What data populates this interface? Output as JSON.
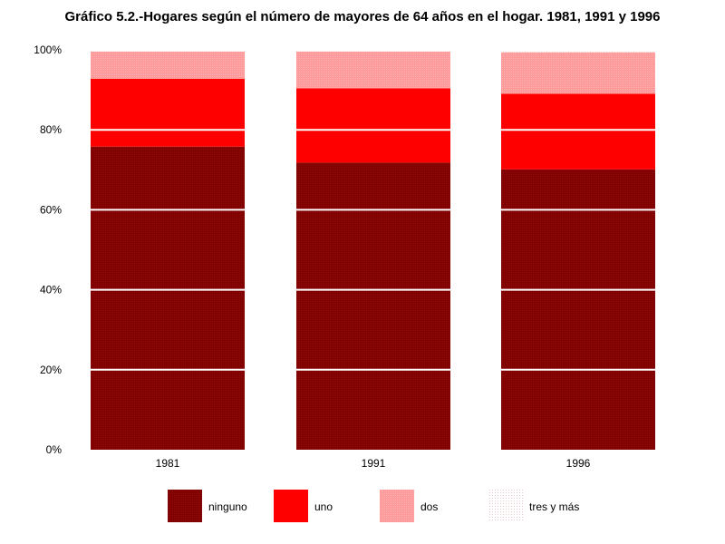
{
  "chart_data": {
    "type": "bar",
    "stacked": true,
    "normalized": true,
    "title": "Gráfico 5.2.-Hogares según el número de mayores de 64 años en el hogar. 1981, 1991 y 1996",
    "xlabel": "",
    "ylabel": "",
    "categories": [
      "1981",
      "1991",
      "1996"
    ],
    "y_ticks": [
      "0%",
      "20%",
      "40%",
      "60%",
      "80%",
      "100%"
    ],
    "ylim": [
      0,
      100
    ],
    "grid": true,
    "legend_position": "bottom",
    "series": [
      {
        "name": "ninguno",
        "values": [
          75.8,
          71.8,
          70.1
        ],
        "color": "#800000",
        "texture": true
      },
      {
        "name": "uno",
        "values": [
          17.0,
          18.6,
          18.9
        ],
        "color": "#ff0000"
      },
      {
        "name": "dos",
        "values": [
          6.8,
          9.2,
          10.4
        ],
        "color": "#ff9999",
        "texture": true
      },
      {
        "name": "tres y más",
        "values": [
          0.4,
          0.4,
          0.6
        ],
        "color": "#f2dede",
        "texture": true
      }
    ]
  }
}
